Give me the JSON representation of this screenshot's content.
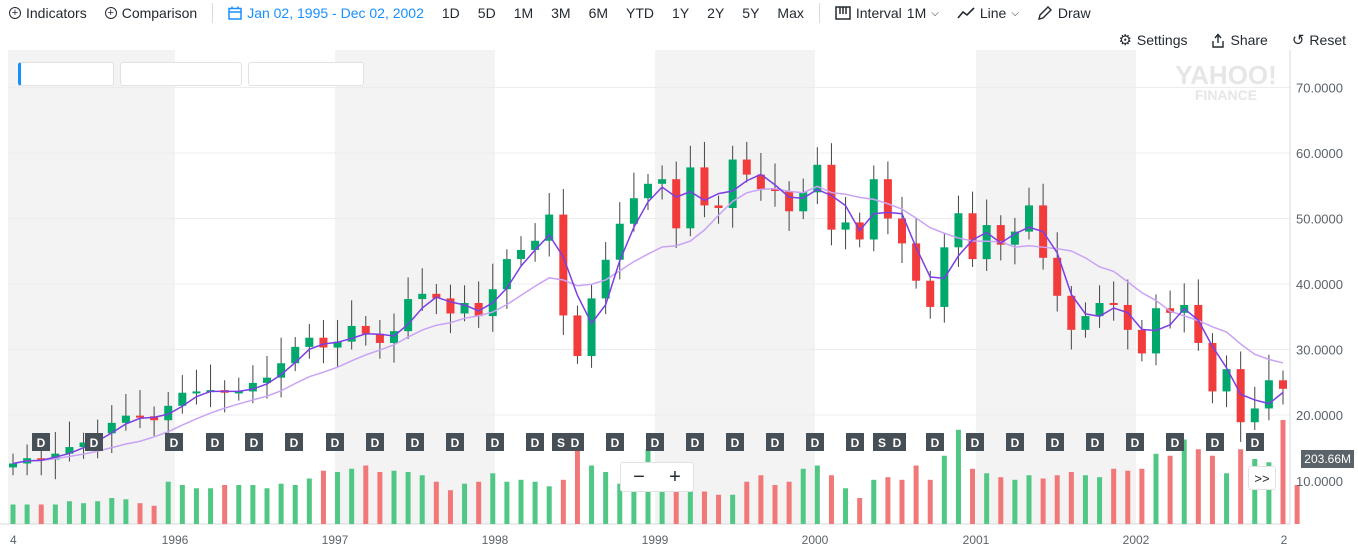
{
  "toolbar": {
    "indicators": "Indicators",
    "comparison": "Comparison",
    "date_range": "Jan 02, 1995 - Dec 02, 2002",
    "ranges": [
      "1D",
      "5D",
      "1M",
      "3M",
      "6M",
      "YTD",
      "1Y",
      "2Y",
      "5Y",
      "Max"
    ],
    "interval_label": "Interval",
    "interval_value": "1M",
    "line_label": "Line",
    "draw_label": "Draw"
  },
  "subbar": {
    "settings": "Settings",
    "share": "Share",
    "reset": "Reset"
  },
  "watermark": {
    "line1": "YAHOO!",
    "line2": "FINANCE"
  },
  "zoom": {
    "minus": "−",
    "plus": "+"
  },
  "expand_label": ">>",
  "volume_badge": "203.66M",
  "chart_data": {
    "type": "candlestick",
    "y_ticks": [
      "70.0000",
      "60.0000",
      "50.0000",
      "40.0000",
      "30.0000",
      "20.0000"
    ],
    "y_ticks_values": [
      70,
      60,
      50,
      40,
      30,
      20
    ],
    "volume_tick": "10.0000",
    "x_labels": [
      "4",
      "1996",
      "1997",
      "1998",
      "1999",
      "2000",
      "2001",
      "2002",
      "2"
    ],
    "event_markers": [
      "D",
      "D",
      "D",
      "D",
      "D",
      "D",
      "D",
      "D",
      "D",
      "D",
      "D",
      "D",
      "S",
      "D",
      "D",
      "D",
      "D",
      "D",
      "D",
      "D",
      "D",
      "D",
      "S",
      "D",
      "D",
      "D",
      "D",
      "D",
      "D",
      "D",
      "D",
      "D",
      "D",
      "D"
    ],
    "closes": [
      12.6,
      13.4,
      13.2,
      14.1,
      15.1,
      15.8,
      17.2,
      18.8,
      19.9,
      19.8,
      19.2,
      21.4,
      23.4,
      23.6,
      23.8,
      23.4,
      23.6,
      24.9,
      25.7,
      27.9,
      30.4,
      31.8,
      30.3,
      31.2,
      33.6,
      32.4,
      31.0,
      32.8,
      37.7,
      38.5,
      37.8,
      35.5,
      37.1,
      35.1,
      39.2,
      43.8,
      45.2,
      46.6,
      50.6,
      35.2,
      29.0,
      37.8,
      43.7,
      49.2,
      53.1,
      55.3,
      56.0,
      48.5,
      57.8,
      52.0,
      51.6,
      59.0,
      56.7,
      54.5,
      54.2,
      51.1,
      54.0,
      58.2,
      48.3,
      49.4,
      46.8,
      56.0,
      50.0,
      46.2,
      40.5,
      36.5,
      45.6,
      50.8,
      43.8,
      49.0,
      46.0,
      48.0,
      52.0,
      44.0,
      38.2,
      33.0,
      35.1,
      37.1,
      36.8,
      33.0,
      29.4,
      36.3,
      35.6,
      36.8,
      31.0,
      23.6,
      27.0,
      18.9,
      21.0,
      25.3,
      24.0
    ],
    "opens": [
      12.0,
      12.6,
      13.4,
      13.2,
      14.1,
      15.1,
      15.8,
      17.2,
      18.8,
      19.9,
      19.8,
      19.2,
      21.4,
      23.4,
      23.6,
      23.8,
      23.4,
      23.6,
      24.9,
      25.7,
      27.9,
      30.4,
      31.8,
      30.3,
      31.2,
      33.6,
      32.4,
      31.0,
      32.8,
      37.7,
      38.5,
      37.8,
      35.5,
      37.1,
      35.1,
      39.2,
      43.8,
      45.2,
      46.6,
      50.6,
      35.2,
      29.0,
      37.8,
      43.7,
      49.2,
      53.1,
      55.3,
      56.0,
      48.5,
      57.8,
      52.0,
      51.6,
      59.0,
      56.7,
      54.5,
      54.2,
      51.1,
      54.0,
      58.2,
      48.3,
      49.4,
      46.8,
      56.0,
      50.0,
      46.2,
      40.5,
      36.5,
      45.6,
      50.8,
      43.8,
      49.0,
      46.0,
      48.0,
      52.0,
      44.0,
      38.2,
      33.0,
      35.1,
      37.1,
      36.8,
      33.0,
      29.4,
      36.3,
      35.6,
      36.8,
      31.0,
      23.6,
      27.0,
      18.9,
      21.0,
      25.3
    ],
    "volumes": [
      3,
      3,
      3,
      3,
      3.5,
      3.2,
      3.5,
      4,
      3.8,
      3.2,
      2.8,
      6.5,
      6,
      5.5,
      5.5,
      6,
      6,
      6,
      5.5,
      6.2,
      6,
      7,
      8.2,
      8,
      8.5,
      9,
      8,
      8.2,
      8,
      7.5,
      6.5,
      5.2,
      6.2,
      6.5,
      7.8,
      6.5,
      6.8,
      6.5,
      5.8,
      6.8,
      13.5,
      9,
      8,
      6.2,
      8,
      11.5,
      7.5,
      7.5,
      5.5,
      5,
      4.5,
      4.5,
      6.5,
      7.5,
      6,
      6.5,
      8.5,
      9,
      7.5,
      5.5,
      4,
      6.8,
      7.2,
      6.8,
      9,
      6.8,
      10.5,
      14.5,
      8.5,
      7.8,
      7.2,
      6.8,
      7.5,
      7,
      7.5,
      8,
      7.5,
      7.2,
      8.5,
      8.2,
      8.5,
      10.8,
      10.5,
      13,
      11.5,
      10.5,
      7.8,
      11.5,
      10,
      9.5,
      16,
      6
    ]
  }
}
